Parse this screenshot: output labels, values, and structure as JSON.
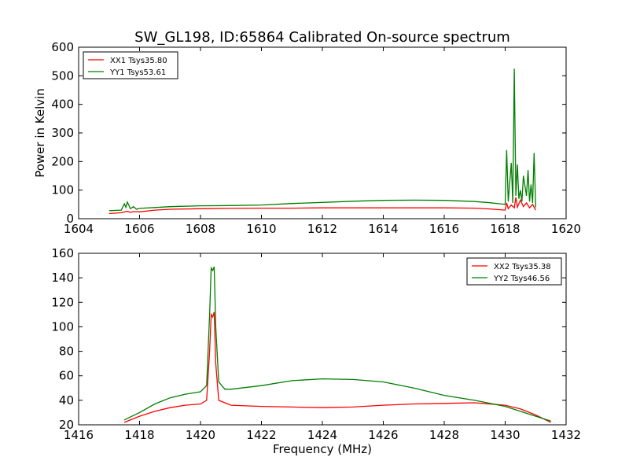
{
  "title": "SW_GL198, ID:65864 Calibrated On-source spectrum",
  "colors": {
    "red": "#ff0000",
    "green": "#007f00",
    "axes": "#000000",
    "background": "#ffffff"
  },
  "chart_data": [
    {
      "type": "line",
      "title": "SW_GL198, ID:65864 Calibrated On-source spectrum",
      "xlabel": "",
      "ylabel": "Power in Kelvin",
      "xlim": [
        1604,
        1620
      ],
      "ylim": [
        0,
        600
      ],
      "xticks": [
        "1604",
        "1606",
        "1608",
        "1610",
        "1612",
        "1614",
        "1616",
        "1618",
        "1620"
      ],
      "yticks": [
        "0",
        "100",
        "200",
        "300",
        "400",
        "500",
        "600"
      ],
      "grid": false,
      "legend_position": "top-left",
      "series": [
        {
          "name": "XX1 Tsys35.80",
          "color": "#ff0000",
          "x": [
            1605.0,
            1605.4,
            1605.6,
            1605.7,
            1605.8,
            1606.0,
            1606.5,
            1607.0,
            1608.0,
            1609.0,
            1610.0,
            1611.0,
            1612.0,
            1613.0,
            1614.0,
            1615.0,
            1616.0,
            1617.0,
            1617.5,
            1618.0,
            1618.05,
            1618.1,
            1618.2,
            1618.3,
            1618.35,
            1618.4,
            1618.5,
            1618.6,
            1618.7,
            1618.8,
            1618.9,
            1619.0
          ],
          "y": [
            18,
            21,
            26,
            22,
            25,
            24,
            30,
            33,
            35,
            36,
            37,
            37,
            38,
            38,
            38,
            38,
            38,
            37,
            34,
            30,
            55,
            35,
            48,
            38,
            75,
            40,
            65,
            42,
            55,
            38,
            50,
            30
          ]
        },
        {
          "name": "YY1 Tsys53.61",
          "color": "#007f00",
          "x": [
            1605.0,
            1605.4,
            1605.5,
            1605.55,
            1605.6,
            1605.7,
            1605.8,
            1605.9,
            1606.0,
            1606.5,
            1607.0,
            1608.0,
            1609.0,
            1610.0,
            1611.0,
            1612.0,
            1613.0,
            1614.0,
            1615.0,
            1616.0,
            1617.0,
            1617.5,
            1618.0,
            1618.05,
            1618.1,
            1618.2,
            1618.25,
            1618.3,
            1618.35,
            1618.4,
            1618.45,
            1618.5,
            1618.55,
            1618.6,
            1618.7,
            1618.75,
            1618.8,
            1618.85,
            1618.9,
            1618.95,
            1619.0
          ],
          "y": [
            28,
            30,
            52,
            40,
            58,
            35,
            42,
            33,
            36,
            39,
            42,
            45,
            46,
            48,
            53,
            57,
            61,
            64,
            65,
            64,
            60,
            56,
            50,
            240,
            60,
            195,
            55,
            525,
            80,
            190,
            70,
            100,
            60,
            150,
            80,
            170,
            60,
            120,
            55,
            230,
            40
          ]
        }
      ]
    },
    {
      "type": "line",
      "title": "",
      "xlabel": "Frequency (MHz)",
      "ylabel": "",
      "xlim": [
        1416,
        1432
      ],
      "ylim": [
        20,
        160
      ],
      "xticks": [
        "1416",
        "1418",
        "1420",
        "1422",
        "1424",
        "1426",
        "1428",
        "1430",
        "1432"
      ],
      "yticks": [
        "20",
        "40",
        "60",
        "80",
        "100",
        "120",
        "140",
        "160"
      ],
      "grid": false,
      "legend_position": "top-right",
      "series": [
        {
          "name": "XX2 Tsys35.38",
          "color": "#ff0000",
          "x": [
            1417.5,
            1418.0,
            1418.5,
            1419.0,
            1419.5,
            1420.0,
            1420.2,
            1420.3,
            1420.35,
            1420.4,
            1420.45,
            1420.5,
            1420.6,
            1421.0,
            1422.0,
            1423.0,
            1424.0,
            1425.0,
            1426.0,
            1427.0,
            1428.0,
            1429.0,
            1430.0,
            1430.5,
            1431.0,
            1431.5
          ],
          "y": [
            22,
            27,
            31,
            34,
            36,
            37,
            40,
            80,
            110,
            108,
            112,
            70,
            40,
            36,
            35,
            34.5,
            34,
            34.5,
            36,
            37,
            37.5,
            38,
            36,
            33,
            28,
            22
          ]
        },
        {
          "name": "YY2 Tsys46.56",
          "color": "#007f00",
          "x": [
            1417.5,
            1418.0,
            1418.5,
            1419.0,
            1419.5,
            1420.0,
            1420.2,
            1420.3,
            1420.35,
            1420.4,
            1420.45,
            1420.5,
            1420.6,
            1420.8,
            1421.0,
            1422.0,
            1423.0,
            1424.0,
            1425.0,
            1426.0,
            1427.0,
            1428.0,
            1429.0,
            1430.0,
            1430.5,
            1431.0,
            1431.5
          ],
          "y": [
            24,
            30,
            37,
            42,
            45,
            47,
            52,
            110,
            148,
            146,
            149,
            100,
            55,
            49,
            49,
            52,
            56,
            57.5,
            57,
            55,
            50,
            44,
            40,
            35,
            31,
            27,
            23
          ]
        }
      ]
    }
  ]
}
